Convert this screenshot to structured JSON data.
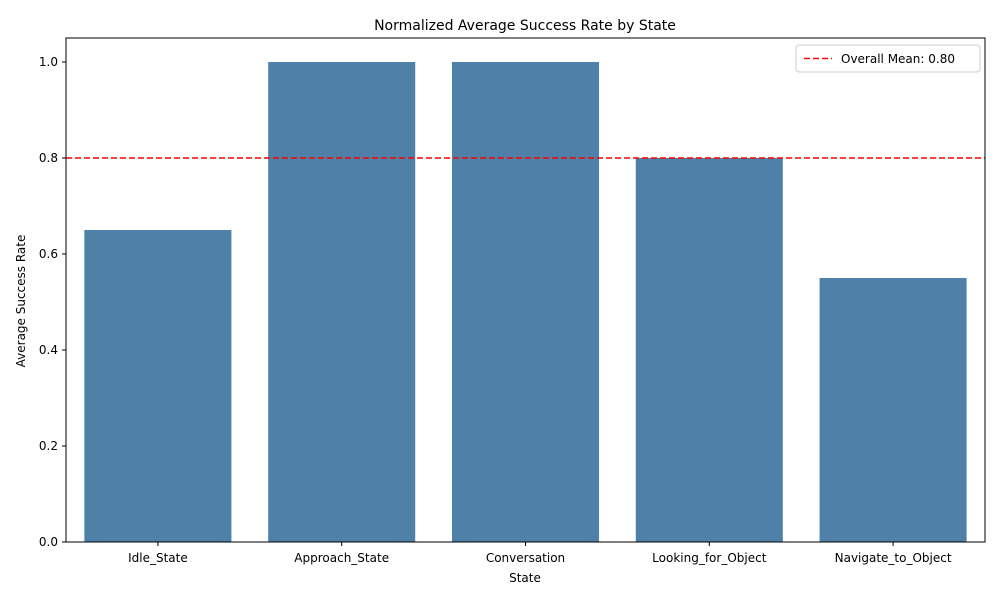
{
  "chart_data": {
    "type": "bar",
    "title": "Normalized Average Success Rate by State",
    "xlabel": "State",
    "ylabel": "Average Success Rate",
    "categories": [
      "Idle_State",
      "Approach_State",
      "Conversation",
      "Looking_for_Object",
      "Navigate_to_Object"
    ],
    "values": [
      0.65,
      1.0,
      1.0,
      0.8,
      0.55
    ],
    "ylim": [
      0,
      1.05
    ],
    "yticks": [
      0.0,
      0.2,
      0.4,
      0.6,
      0.8,
      1.0
    ],
    "ytick_labels": [
      "0.0",
      "0.2",
      "0.4",
      "0.6",
      "0.8",
      "1.0"
    ],
    "grid": false,
    "bar_color": "#4f81a8",
    "reference_line": {
      "value": 0.8,
      "label": "Overall Mean: 0.80",
      "color": "#ff0000",
      "style": "dashed"
    },
    "legend_position": "top-right"
  }
}
